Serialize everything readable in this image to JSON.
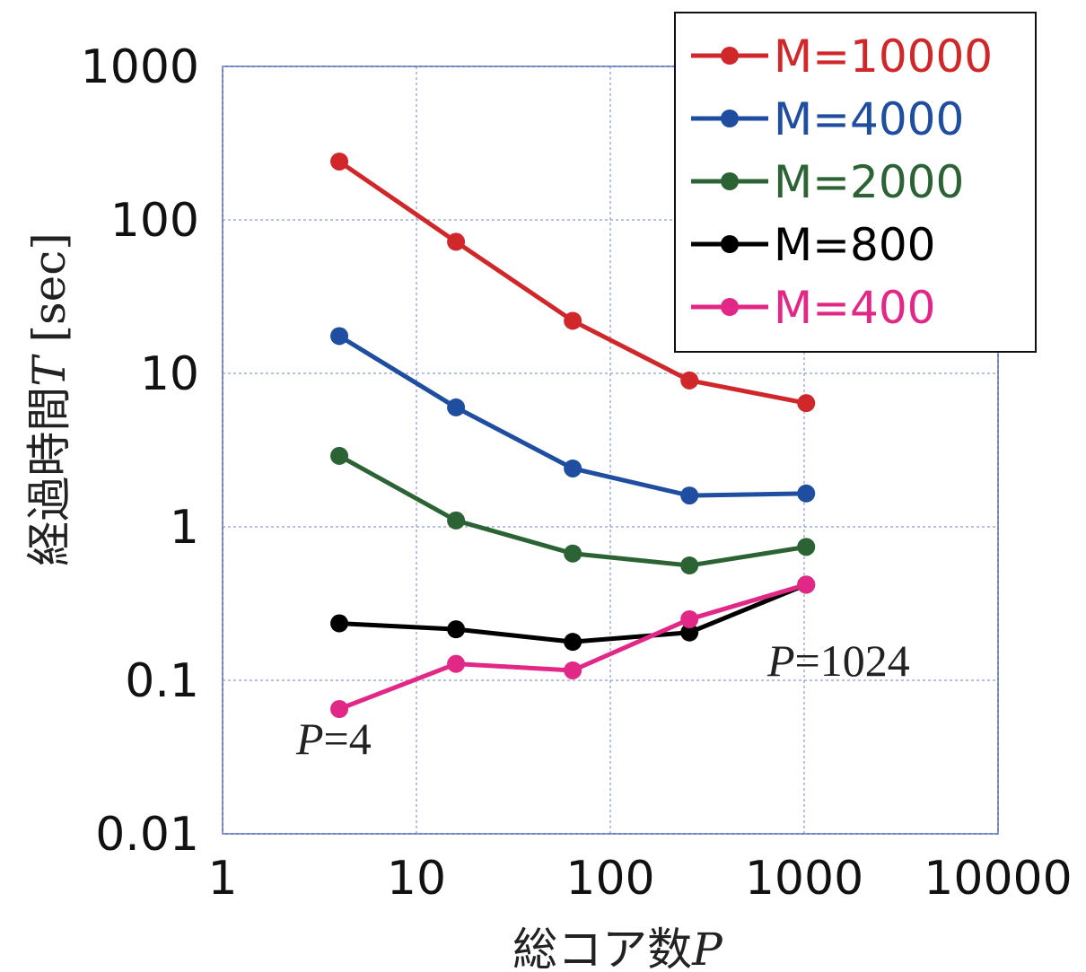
{
  "chart_data": {
    "type": "line",
    "xlabel": "総コア数P",
    "ylabel": "経過時間T [sec]",
    "x_scale": "log",
    "y_scale": "log",
    "xlim": [
      1,
      10000
    ],
    "ylim": [
      0.01,
      1000
    ],
    "x_ticks": [
      "1",
      "10",
      "100",
      "1000",
      "10000"
    ],
    "y_ticks": [
      "0.01",
      "0.1",
      "1",
      "10",
      "100",
      "1000"
    ],
    "grid": true,
    "legend_position": "top-right",
    "x": [
      4,
      16,
      64,
      256,
      1024
    ],
    "series": [
      {
        "name": "M=10000",
        "color": "#d0282a",
        "values": [
          240,
          72,
          22,
          9,
          6.4
        ]
      },
      {
        "name": "M=4000",
        "color": "#1f4ea1",
        "values": [
          17.5,
          6,
          2.4,
          1.6,
          1.65
        ]
      },
      {
        "name": "M=2000",
        "color": "#2c6334",
        "values": [
          2.9,
          1.1,
          0.67,
          0.56,
          0.74
        ]
      },
      {
        "name": "M=800",
        "color": "#000000",
        "values": [
          0.235,
          0.215,
          0.178,
          0.205,
          0.42
        ]
      },
      {
        "name": "M=400",
        "color": "#e22886",
        "values": [
          0.065,
          0.128,
          0.116,
          0.25,
          0.42
        ]
      }
    ],
    "annotations": [
      {
        "text": "P=4",
        "x": 4,
        "y": 0.065
      },
      {
        "text": "P=1024",
        "x": 1024,
        "y": 0.42
      }
    ]
  }
}
